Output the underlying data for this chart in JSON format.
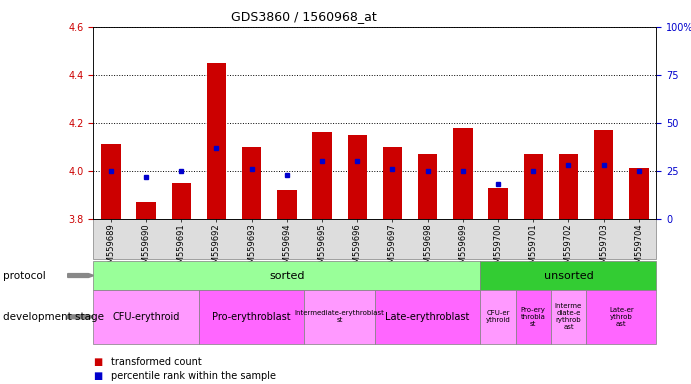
{
  "title": "GDS3860 / 1560968_at",
  "samples": [
    "GSM559689",
    "GSM559690",
    "GSM559691",
    "GSM559692",
    "GSM559693",
    "GSM559694",
    "GSM559695",
    "GSM559696",
    "GSM559697",
    "GSM559698",
    "GSM559699",
    "GSM559700",
    "GSM559701",
    "GSM559702",
    "GSM559703",
    "GSM559704"
  ],
  "red_values": [
    4.11,
    3.87,
    3.95,
    4.45,
    4.1,
    3.92,
    4.16,
    4.15,
    4.1,
    4.07,
    4.18,
    3.93,
    4.07,
    4.07,
    4.17,
    4.01
  ],
  "blue_values": [
    25,
    22,
    25,
    37,
    26,
    23,
    30,
    30,
    26,
    25,
    25,
    18,
    25,
    28,
    28,
    25
  ],
  "ylim_left": [
    3.8,
    4.6
  ],
  "ylim_right": [
    0,
    100
  ],
  "yticks_left": [
    3.8,
    4.0,
    4.2,
    4.4,
    4.6
  ],
  "yticks_right": [
    0,
    25,
    50,
    75,
    100
  ],
  "bar_color": "#cc0000",
  "dot_color": "#0000cc",
  "baseline": 3.8,
  "protocol_row": [
    {
      "label": "sorted",
      "start": 0,
      "end": 11,
      "color": "#99ff99"
    },
    {
      "label": "unsorted",
      "start": 11,
      "end": 16,
      "color": "#33cc33"
    }
  ],
  "dev_stage_row": [
    {
      "label": "CFU-erythroid",
      "start": 0,
      "end": 3,
      "color": "#ff99ff"
    },
    {
      "label": "Pro-erythroblast",
      "start": 3,
      "end": 6,
      "color": "#ff66ff"
    },
    {
      "label": "Intermediate-erythroblast\nst",
      "start": 6,
      "end": 8,
      "color": "#ff99ff"
    },
    {
      "label": "Late-erythroblast",
      "start": 8,
      "end": 11,
      "color": "#ff66ff"
    },
    {
      "label": "CFU-er\nythroid",
      "start": 11,
      "end": 12,
      "color": "#ff99ff"
    },
    {
      "label": "Pro-ery\nthrobla\nst",
      "start": 12,
      "end": 13,
      "color": "#ff66ff"
    },
    {
      "label": "Interme\ndiate-e\nrythrob\nast",
      "start": 13,
      "end": 14,
      "color": "#ff99ff"
    },
    {
      "label": "Late-er\nythrob\nast",
      "start": 14,
      "end": 16,
      "color": "#ff66ff"
    }
  ],
  "legend_items": [
    {
      "label": "transformed count",
      "color": "#cc0000"
    },
    {
      "label": "percentile rank within the sample",
      "color": "#0000cc"
    }
  ],
  "bg_color": "#ffffff",
  "tick_label_color_left": "#cc0000",
  "tick_label_color_right": "#0000cc",
  "protocol_label": "protocol",
  "dev_stage_label": "development stage"
}
